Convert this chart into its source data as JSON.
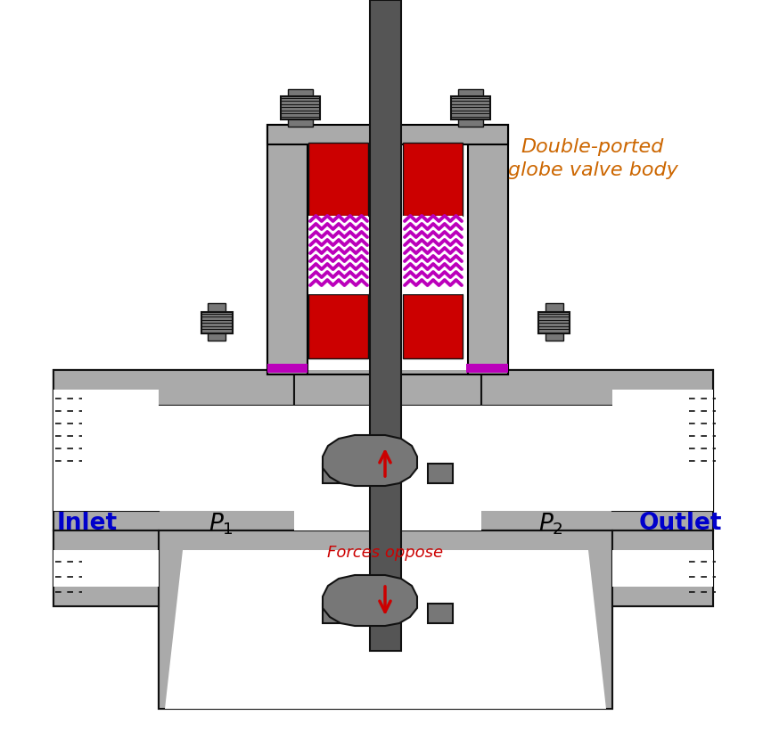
{
  "title_line1": "Double-ported",
  "title_line2": "globe valve body",
  "title_color": "#cc6600",
  "title_fontsize": 16,
  "label_inlet": "Inlet",
  "label_outlet": "Outlet",
  "label_forces": "Forces oppose",
  "label_color_inlet_outlet": "#0000cc",
  "label_color_forces": "#cc0000",
  "body_color": "#aaaaaa",
  "body_dark": "#777777",
  "stem_color": "#555555",
  "plug_color": "#666666",
  "packing_red": "#cc0000",
  "packing_purple": "#bb00bb",
  "bolt_color": "#333333",
  "background": "#ffffff",
  "fig_width": 8.65,
  "fig_height": 8.3,
  "dpi": 100
}
